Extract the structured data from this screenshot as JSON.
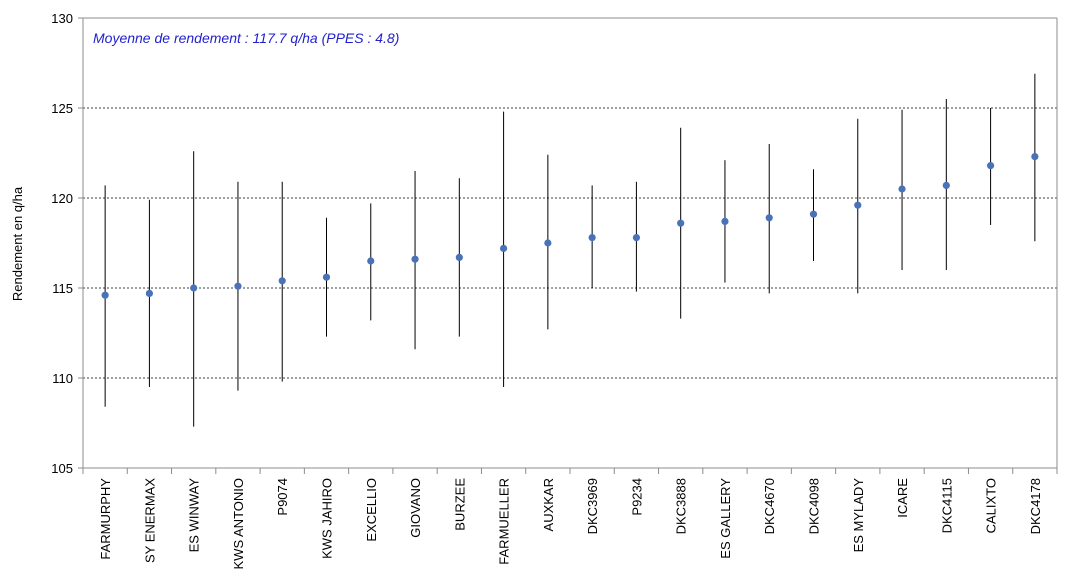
{
  "chart_data": {
    "type": "scatter",
    "ylabel": "Rendement en q/ha",
    "annotation": "Moyenne de rendement : 117.7 q/ha (PPES : 4.8)",
    "ylim": [
      105,
      130
    ],
    "yticks": [
      105,
      110,
      115,
      120,
      125,
      130
    ],
    "ytick_labels": [
      "105",
      "110",
      "115",
      "120",
      "125",
      "130"
    ],
    "grid": "horizontal dotted at 110, 115, 120, 125",
    "point_color": "#4a72b8",
    "annotation_color": "#1f1fd0",
    "categories": [
      "FARMURPHY",
      "SY ENERMAX",
      "ES WINWAY",
      "KWS ANTONIO",
      "P9074",
      "KWS JAHIRO",
      "EXCELLIO",
      "GIOVANO",
      "BURZEE",
      "FARMUELLER",
      "AUXKAR",
      "DKC3969",
      "P9234",
      "DKC3888",
      "ES GALLERY",
      "DKC4670",
      "DKC4098",
      "ES MYLADY",
      "ICARE",
      "DKC4115",
      "CALIXTO",
      "DKC4178"
    ],
    "series": [
      {
        "values": [
          114.6,
          114.7,
          115.0,
          115.1,
          115.4,
          115.6,
          116.5,
          116.6,
          116.7,
          117.2,
          117.5,
          117.8,
          117.8,
          118.6,
          118.7,
          118.9,
          119.1,
          119.6,
          120.5,
          120.7,
          121.8,
          122.3
        ],
        "low": [
          108.4,
          109.5,
          107.3,
          109.3,
          109.8,
          112.3,
          113.2,
          111.6,
          112.3,
          109.5,
          112.7,
          115.0,
          114.8,
          113.3,
          115.3,
          114.7,
          116.5,
          114.7,
          116.0,
          116.0,
          118.5,
          117.6
        ],
        "high": [
          120.7,
          119.9,
          122.6,
          120.9,
          120.9,
          118.9,
          119.7,
          121.5,
          121.1,
          124.8,
          122.4,
          120.7,
          120.9,
          123.9,
          122.1,
          123.0,
          121.6,
          124.4,
          124.9,
          125.5,
          125.0,
          126.9
        ]
      }
    ]
  }
}
